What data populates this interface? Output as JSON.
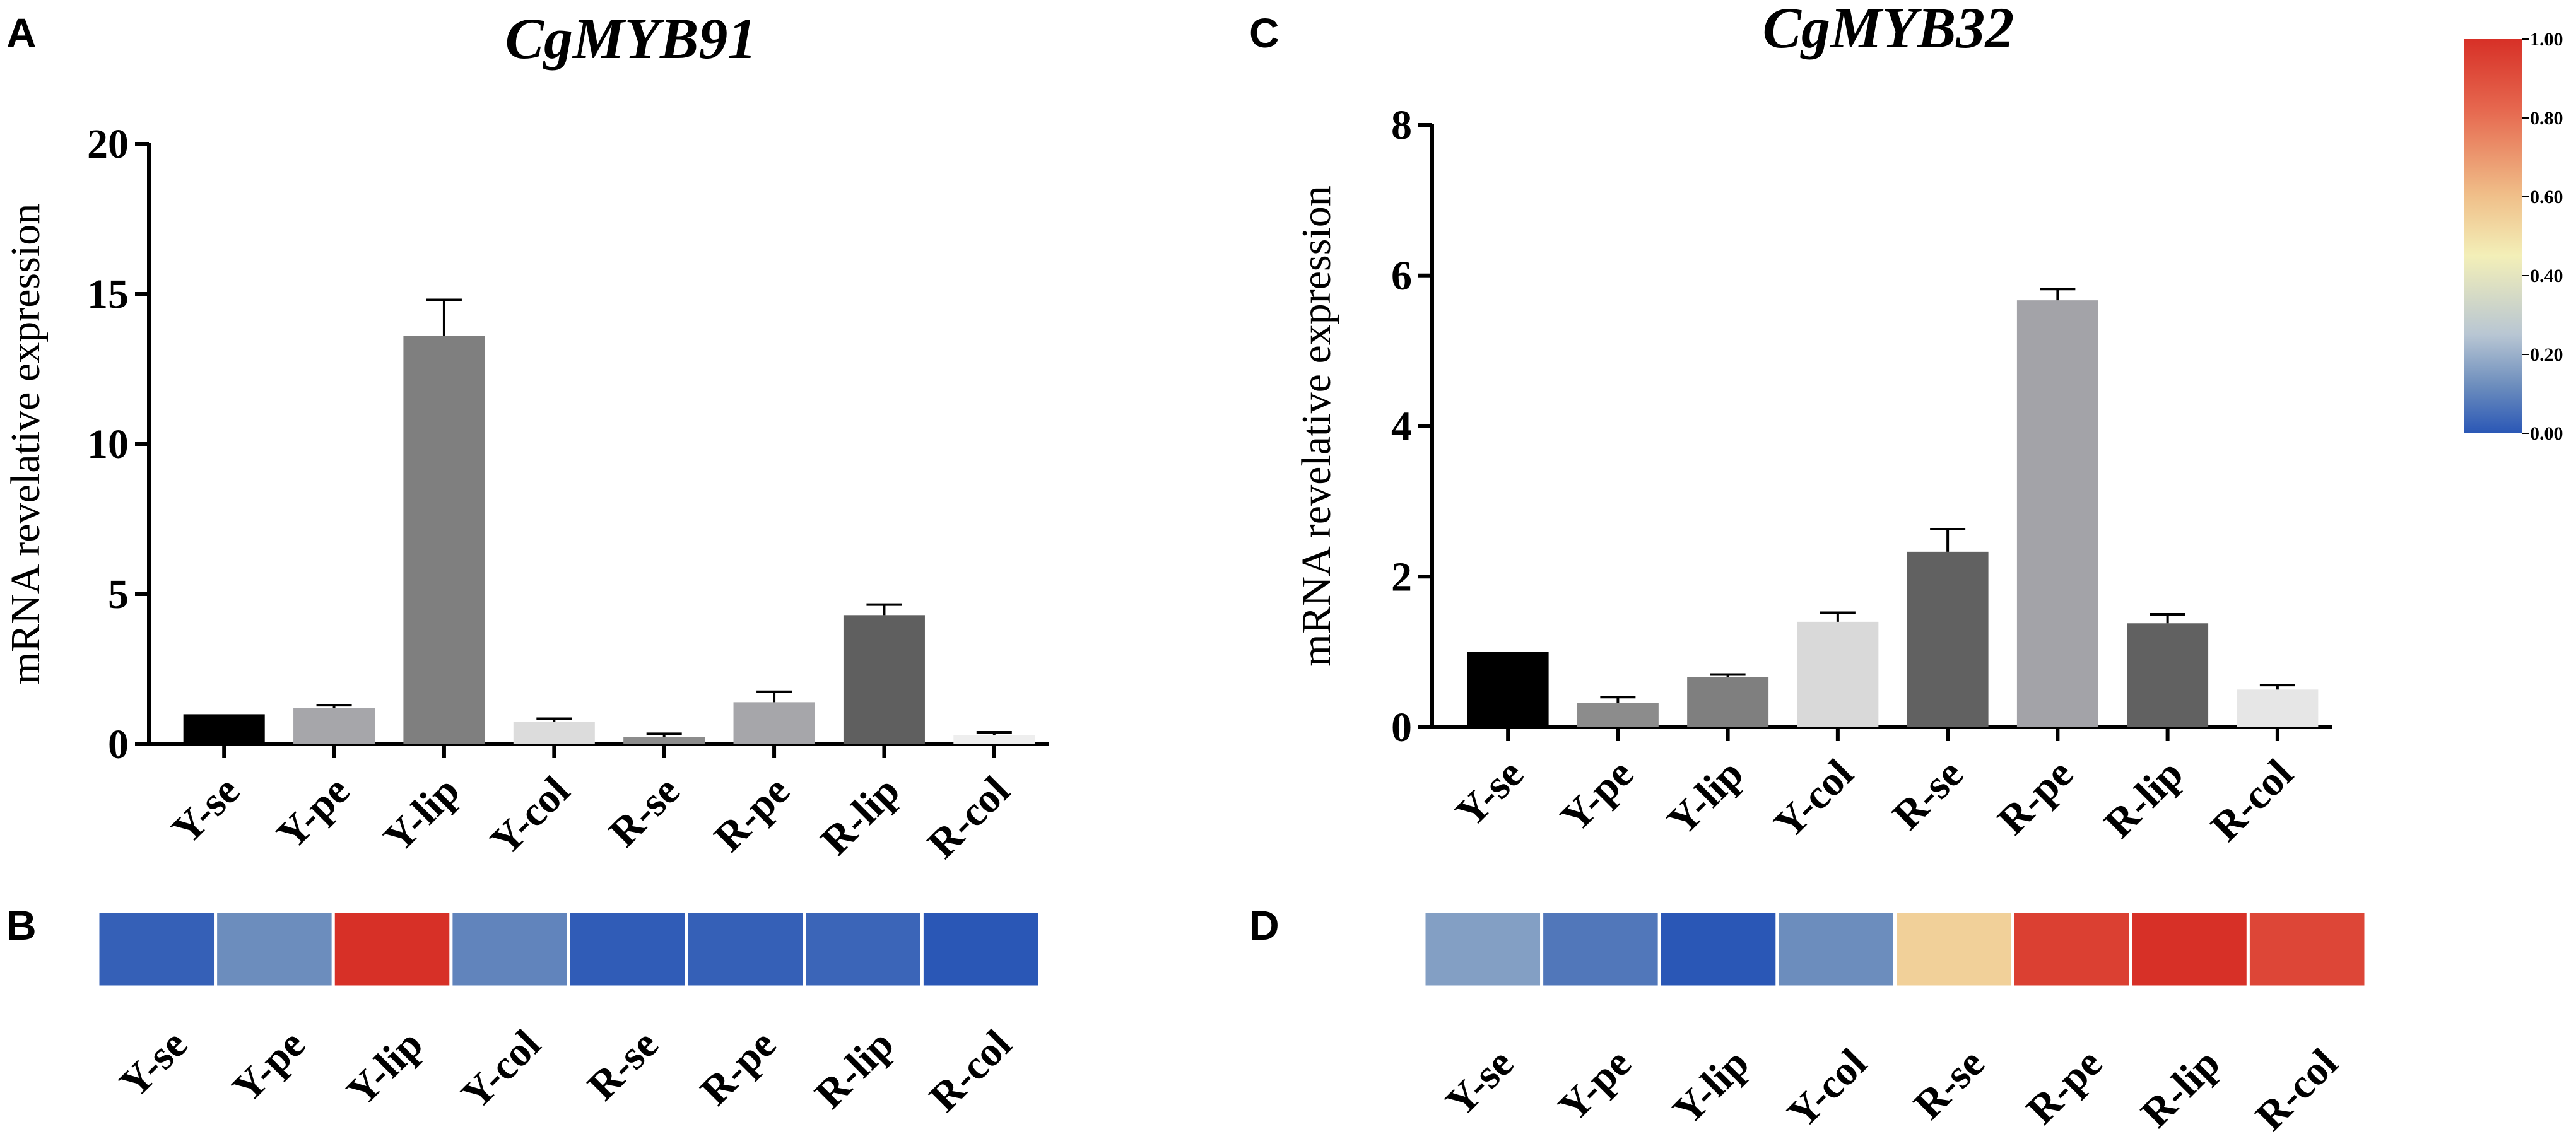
{
  "panels": {
    "A": "A",
    "B": "B",
    "C": "C",
    "D": "D"
  },
  "colorbar": {
    "ticks": [
      "1.00",
      "0.80",
      "0.60",
      "0.40",
      "0.20",
      "0.00"
    ],
    "colors": [
      "#d73027",
      "#e6684f",
      "#f0c08a",
      "#f3efb8",
      "#b8c6d3",
      "#6c8dbd",
      "#2a57b6"
    ]
  },
  "chart_data": [
    {
      "type": "bar",
      "title": "CgMYB91",
      "xlabel": "",
      "ylabel": "mRNA revelative expression",
      "ylim": [
        0,
        20
      ],
      "yticks": [
        0,
        5,
        10,
        15,
        20
      ],
      "categories": [
        "Y-se",
        "Y-pe",
        "Y-lip",
        "Y-col",
        "R-se",
        "R-pe",
        "R-lip",
        "R-col"
      ],
      "values": [
        1.0,
        1.2,
        13.6,
        0.75,
        0.25,
        1.4,
        4.3,
        0.3
      ],
      "errors": [
        0.0,
        0.1,
        1.2,
        0.1,
        0.1,
        0.35,
        0.35,
        0.1
      ],
      "bar_colors": [
        "#000000",
        "#a6a6aa",
        "#7f7f7f",
        "#dcdcdc",
        "#8c8c8c",
        "#a6a6aa",
        "#5f5f5f",
        "#eeeeee"
      ],
      "grid": false
    },
    {
      "type": "heatmap",
      "categories": [
        "Y-se",
        "Y-pe",
        "Y-lip",
        "Y-col",
        "R-se",
        "R-pe",
        "R-lip",
        "R-col"
      ],
      "values": [
        0.02,
        0.12,
        1.0,
        0.1,
        0.01,
        0.02,
        0.03,
        0.0
      ]
    },
    {
      "type": "bar",
      "title": "CgMYB32",
      "xlabel": "",
      "ylabel": "mRNA revelative expression",
      "ylim": [
        0,
        8
      ],
      "yticks": [
        0,
        2,
        4,
        6,
        8
      ],
      "categories": [
        "Y-se",
        "Y-pe",
        "Y-lip",
        "Y-col",
        "R-se",
        "R-pe",
        "R-lip",
        "R-col"
      ],
      "values": [
        1.0,
        0.32,
        0.67,
        1.4,
        2.33,
        5.67,
        1.38,
        0.5
      ],
      "errors": [
        0.0,
        0.08,
        0.03,
        0.12,
        0.3,
        0.15,
        0.12,
        0.06
      ],
      "bar_colors": [
        "#000000",
        "#8c8c8c",
        "#7f7f7f",
        "#d9d9d9",
        "#616161",
        "#a3a3a8",
        "#616161",
        "#e6e6e6"
      ],
      "grid": false
    },
    {
      "type": "heatmap",
      "categories": [
        "Y-se",
        "Y-pe",
        "Y-lip",
        "Y-col",
        "R-se",
        "R-pe",
        "R-lip",
        "R-col"
      ],
      "values": [
        0.16,
        0.07,
        0.0,
        0.12,
        0.55,
        0.95,
        1.0,
        0.93
      ]
    }
  ]
}
